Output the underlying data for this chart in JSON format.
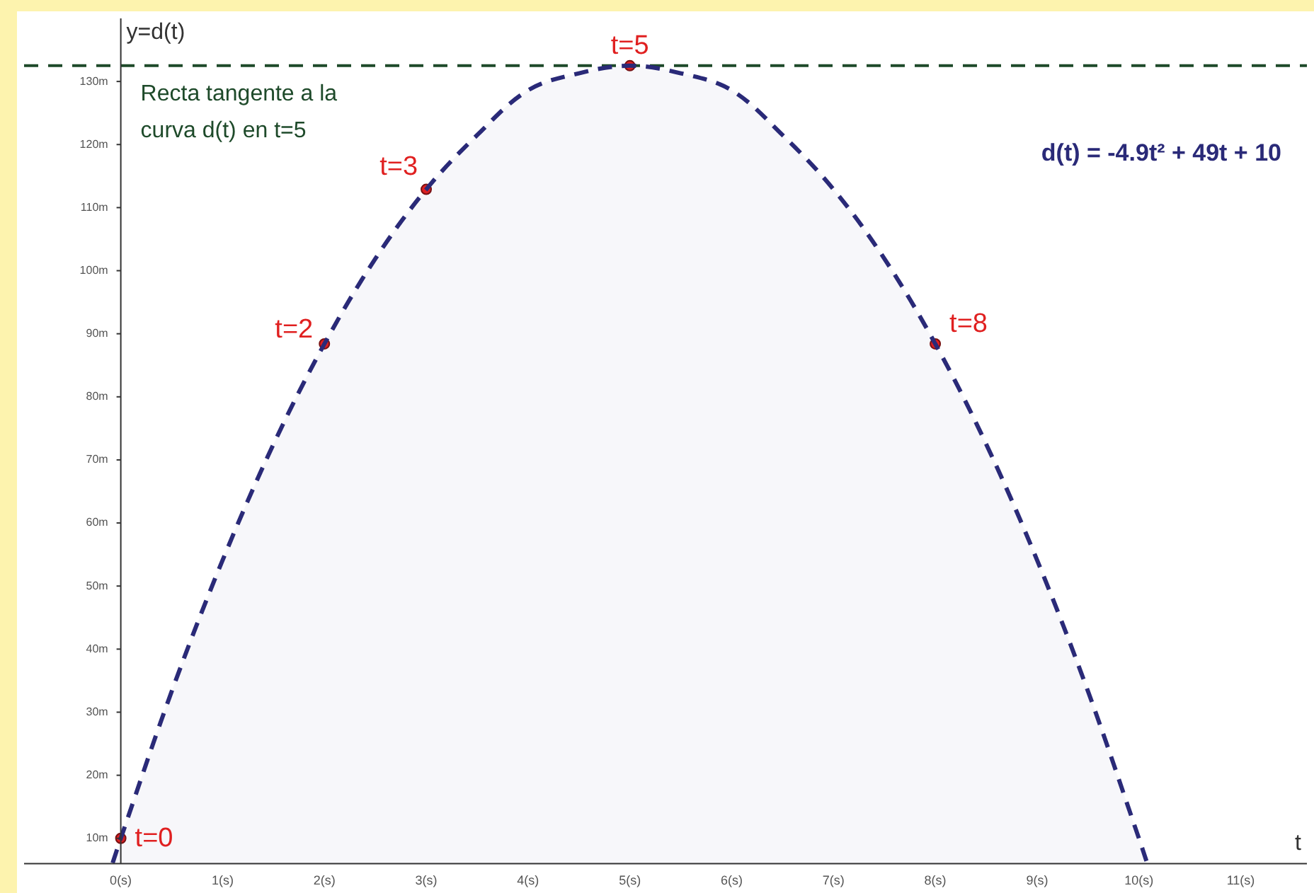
{
  "chart_data": {
    "type": "area",
    "xlabel": "t",
    "ylabel": "y=d(t)",
    "xlim": [
      -0.95,
      11.65
    ],
    "ylim": [
      6,
      140
    ],
    "xticks": [
      {
        "value": 0,
        "label": "0(s)"
      },
      {
        "value": 1,
        "label": "1(s)"
      },
      {
        "value": 2,
        "label": "2(s)"
      },
      {
        "value": 3,
        "label": "3(s)"
      },
      {
        "value": 4,
        "label": "4(s)"
      },
      {
        "value": 5,
        "label": "5(s)"
      },
      {
        "value": 6,
        "label": "6(s)"
      },
      {
        "value": 7,
        "label": "7(s)"
      },
      {
        "value": 8,
        "label": "8(s)"
      },
      {
        "value": 9,
        "label": "9(s)"
      },
      {
        "value": 10,
        "label": "10(s)"
      },
      {
        "value": 11,
        "label": "11(s)"
      }
    ],
    "yticks": [
      {
        "value": 10,
        "label": "10m"
      },
      {
        "value": 20,
        "label": "20m"
      },
      {
        "value": 30,
        "label": "30m"
      },
      {
        "value": 40,
        "label": "40m"
      },
      {
        "value": 50,
        "label": "50m"
      },
      {
        "value": 60,
        "label": "60m"
      },
      {
        "value": 70,
        "label": "70m"
      },
      {
        "value": 80,
        "label": "80m"
      },
      {
        "value": 90,
        "label": "90m"
      },
      {
        "value": 100,
        "label": "100m"
      },
      {
        "value": 110,
        "label": "110m"
      },
      {
        "value": 120,
        "label": "120m"
      },
      {
        "value": 130,
        "label": "130m"
      }
    ],
    "grid": false,
    "legend": false,
    "series": [
      {
        "type": "area",
        "color": "#2a2a78",
        "line_style": "dashed",
        "marker": "none",
        "x": [
          -0.08,
          0,
          0.5,
          1,
          1.5,
          2,
          2.5,
          3,
          3.5,
          4,
          4.5,
          5,
          5.5,
          6,
          6.5,
          7,
          7.5,
          8,
          8.5,
          9,
          9.5,
          10,
          10.08
        ],
        "values": [
          6.1,
          10,
          33.3,
          54.1,
          72.5,
          88.4,
          101.9,
          112.9,
          121.5,
          128.6,
          131.3,
          132.5,
          131.3,
          128.6,
          121.5,
          112.9,
          101.9,
          88.4,
          72.5,
          54.1,
          33.3,
          10,
          6.1
        ]
      },
      {
        "type": "scatter",
        "color": "#e02020",
        "marker": "circle",
        "x": [
          0,
          2,
          3,
          5,
          8
        ],
        "values": [
          10,
          88.4,
          112.9,
          132.5,
          88.4
        ]
      }
    ],
    "ref_lines": [
      {
        "axis": "y",
        "value": 132.5,
        "color": "#1e4a2a",
        "line_style": "dashed"
      }
    ],
    "annotations": [
      {
        "text": "t=0",
        "x": 0,
        "y": 10
      },
      {
        "text": "t=2",
        "x": 2,
        "y": 88.4
      },
      {
        "text": "t=3",
        "x": 3,
        "y": 112.9
      },
      {
        "text": "t=5",
        "x": 5,
        "y": 132.5
      },
      {
        "text": "t=8",
        "x": 8,
        "y": 88.4
      },
      "d(t) = -4.9t² + 49t + 10",
      "Recta tangente a la curva d(t) en t=5"
    ]
  }
}
